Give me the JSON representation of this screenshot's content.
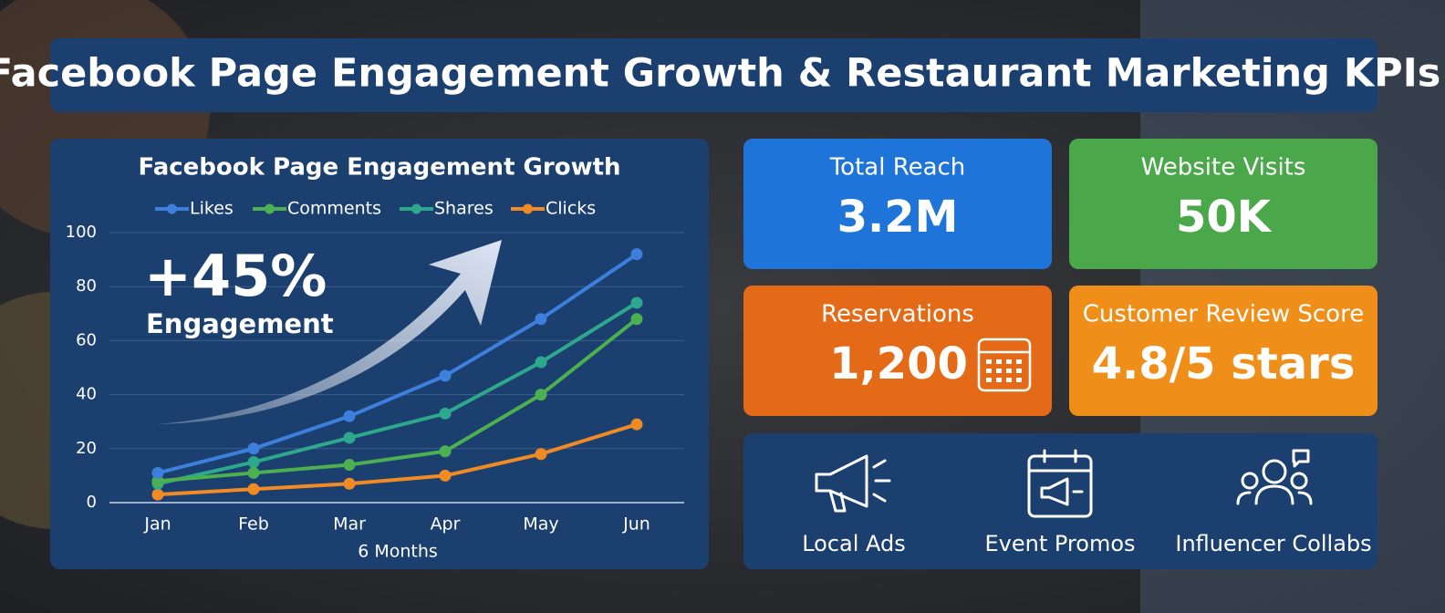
{
  "title": "Facebook Page Engagement Growth & Restaurant Marketing KPIs",
  "chart_data": {
    "type": "line",
    "title": "Facebook Page Engagement Growth",
    "x_label": "6 Months",
    "annotation": {
      "value_text": "+45%",
      "label": "Engagement"
    },
    "categories": [
      "Jan",
      "Feb",
      "Mar",
      "Apr",
      "May",
      "Jun"
    ],
    "series": [
      {
        "name": "Likes",
        "color": "#3d7fdc",
        "values": [
          11,
          20,
          32,
          47,
          68,
          92
        ]
      },
      {
        "name": "Comments",
        "color": "#4caf50",
        "values": [
          8,
          11,
          14,
          19,
          40,
          68
        ]
      },
      {
        "name": "Shares",
        "color": "#2ea88c",
        "values": [
          7,
          15,
          24,
          33,
          52,
          74
        ]
      },
      {
        "name": "Clicks",
        "color": "#f08a24",
        "values": [
          3,
          5,
          7,
          10,
          18,
          29
        ]
      }
    ],
    "ylim": [
      0,
      100
    ],
    "yticks": [
      0,
      20,
      40,
      60,
      80,
      100
    ],
    "grid": true
  },
  "kpis": [
    {
      "label": "Total Reach",
      "value": "3.2M",
      "color": "#1f74d9"
    },
    {
      "label": "Website Visits",
      "value": "50K",
      "color": "#4aa84a"
    },
    {
      "label": "Reservations",
      "value": "1,200",
      "color": "#e56a17"
    },
    {
      "label": "Customer Review Score",
      "value": "4.8/5 stars",
      "color": "#ef8f1a"
    }
  ],
  "tactics": [
    "Local Ads",
    "Event Promos",
    "Influencer Collabs"
  ]
}
